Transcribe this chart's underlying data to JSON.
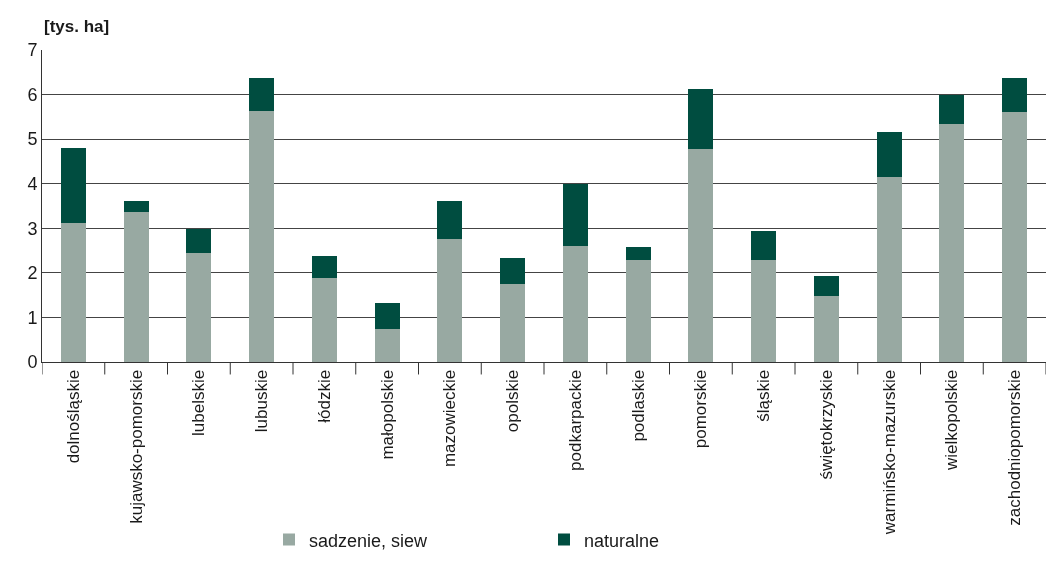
{
  "chart_data": {
    "type": "bar",
    "stacked": true,
    "ylabel": "[tys. ha]",
    "categories": [
      "dolnośląskie",
      "kujawsko-pomorskie",
      "lubelskie",
      "lubuskie",
      "łódzkie",
      "małopolskie",
      "mazowieckie",
      "opolskie",
      "podkarpackie",
      "podlaskie",
      "pomorskie",
      "śląskie",
      "świętokrzyskie",
      "warmińsko-mazurskie",
      "wielkopolskie",
      "zachodniopomorskie"
    ],
    "series": [
      {
        "name": "sadzenie, siew",
        "color": "#98a9a2",
        "values": [
          3.11,
          3.37,
          2.45,
          5.64,
          1.89,
          0.74,
          2.76,
          1.76,
          2.61,
          2.29,
          4.79,
          2.29,
          1.49,
          4.16,
          5.33,
          5.6
        ]
      },
      {
        "name": "naturalne",
        "color": "#004d40",
        "values": [
          1.7,
          0.25,
          0.54,
          0.74,
          0.49,
          0.59,
          0.85,
          0.57,
          1.38,
          0.29,
          1.34,
          0.65,
          0.44,
          1.0,
          0.65,
          0.78
        ]
      }
    ],
    "ylim": [
      0,
      7
    ],
    "yticks": [
      0,
      1,
      2,
      3,
      4,
      5,
      6,
      7
    ],
    "grid": "y",
    "legend": "bottom"
  }
}
